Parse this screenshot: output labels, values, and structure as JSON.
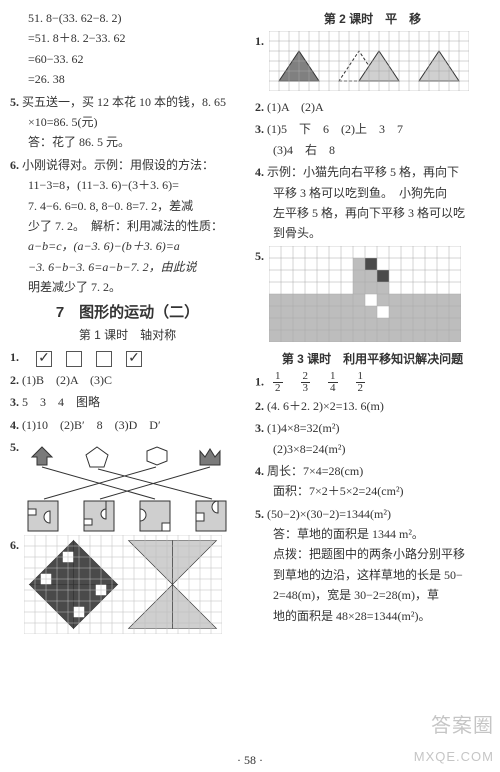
{
  "leftCol": {
    "calc": {
      "l1": "51. 8−(33. 62−8. 2)",
      "l2": "=51. 8＋8. 2−33. 62",
      "l3": "=60−33. 62",
      "l4": "=26. 38"
    },
    "q5": {
      "num": "5.",
      "t1": "买五送一，买 12 本花 10 本的钱，8. 65",
      "t2": "×10=86. 5(元)",
      "t3": "答：花了 86. 5 元。"
    },
    "q6": {
      "num": "6.",
      "t1": "小刚说得对。示例：用假设的方法：",
      "t2": "11−3=8，(11−3. 6)−(3＋3. 6)=",
      "t3": "7. 4−6. 6=0. 8, 8−0. 8=7. 2，差减",
      "t4": "少了 7. 2。　解析：利用减法的性质：",
      "t5": "a−b=c，(a−3. 6)−(b＋3. 6)=a",
      "t6": "−3. 6−b−3. 6=a−b−7. 2，由此说",
      "t7": "明差减少了 7. 2。"
    },
    "unit7": "7　图形的运动（二）",
    "lesson1": "第 1 课时　轴对称",
    "l1q1": {
      "num": "1.",
      "checks": [
        "✓",
        "",
        "",
        "✓"
      ]
    },
    "l1q2": {
      "num": "2.",
      "text": "(1)B　(2)A　(3)C"
    },
    "l1q3": {
      "num": "3.",
      "text": "5　3　4　图略"
    },
    "l1q4": {
      "num": "4.",
      "text": "(1)10　(2)B′　8　(3)D　D′"
    },
    "l1q5": {
      "num": "5.",
      "topShapes": {
        "arrow_color": "#7a7a7a",
        "pent_color": "#ffffff",
        "hex_color": "#ffffff",
        "crown_color": "#7a7a7a",
        "stroke": "#333333"
      },
      "botShapes": {
        "fill": "#cfcfcf",
        "stroke": "#333333"
      },
      "lineColor": "#333333"
    },
    "l1q6": {
      "num": "6.",
      "grid": {
        "cols": 18,
        "rows": 9,
        "cell": 11
      },
      "colors": {
        "grid": "#bdbdbd",
        "dark": "#4a4a4a",
        "light": "#cfcfcf",
        "bg": "#ffffff"
      }
    }
  },
  "rightCol": {
    "lesson2": "第 2 课时　平　移",
    "r2q1": {
      "num": "1.",
      "grid": {
        "cols": 20,
        "rows": 6,
        "cell": 10
      },
      "colors": {
        "grid": "#a8a8a8",
        "tri_outline": "#333",
        "tri_light": "#d0d0d0",
        "tri_dark": "#808080",
        "bg": "#ffffff"
      }
    },
    "r2q2": {
      "num": "2.",
      "text": "(1)A　(2)A"
    },
    "r2q3": {
      "num": "3.",
      "l1": "(1)5　下　6　(2)上　3　7",
      "l2": "(3)4　右　8"
    },
    "r2q4": {
      "num": "4.",
      "l1": "示例：小猫先向右平移 5 格，再向下",
      "l2": "平移 3 格可以吃到鱼。　小狗先向",
      "l3": "左平移 5 格，再向下平移 3 格可以吃",
      "l4": "到骨头。"
    },
    "r2q5": {
      "num": "5.",
      "grid": {
        "cols": 16,
        "rows": 8,
        "cell": 12
      },
      "colors": {
        "grid": "#a8a8a8",
        "fill": "#bdbdbd",
        "dark": "#4a4a4a",
        "bg": "#ffffff"
      }
    },
    "lesson3": "第 3 课时　利用平移知识解决问题",
    "r3q1": {
      "num": "1.",
      "fracs": [
        [
          "1",
          "2"
        ],
        [
          "2",
          "3"
        ],
        [
          "1",
          "4"
        ],
        [
          "1",
          "2"
        ]
      ]
    },
    "r3q2": {
      "num": "2.",
      "text": "(4. 6＋2. 2)×2=13. 6(m)"
    },
    "r3q3": {
      "num": "3.",
      "l1": "(1)4×8=32(m²)",
      "l2": "(2)3×8=24(m²)"
    },
    "r3q4": {
      "num": "4.",
      "l1": "周长：7×4=28(cm)",
      "l2": "面积：7×2＋5×2=24(cm²)"
    },
    "r3q5": {
      "num": "5.",
      "l1": "(50−2)×(30−2)=1344(m²)",
      "l2": "答：草地的面积是 1344 m²。",
      "l3": "点拨：把题图中的两条小路分别平移",
      "l4": "到草地的边沿，这样草地的长是 50−",
      "l5": "2=48(m)，宽是 30−2=28(m)，草",
      "l6": "地的面积是 48×28=1344(m²)。"
    }
  },
  "watermarks": {
    "wm1": "答案圈",
    "wm2": "MXQE.COM"
  },
  "pageNum": "· 58 ·"
}
